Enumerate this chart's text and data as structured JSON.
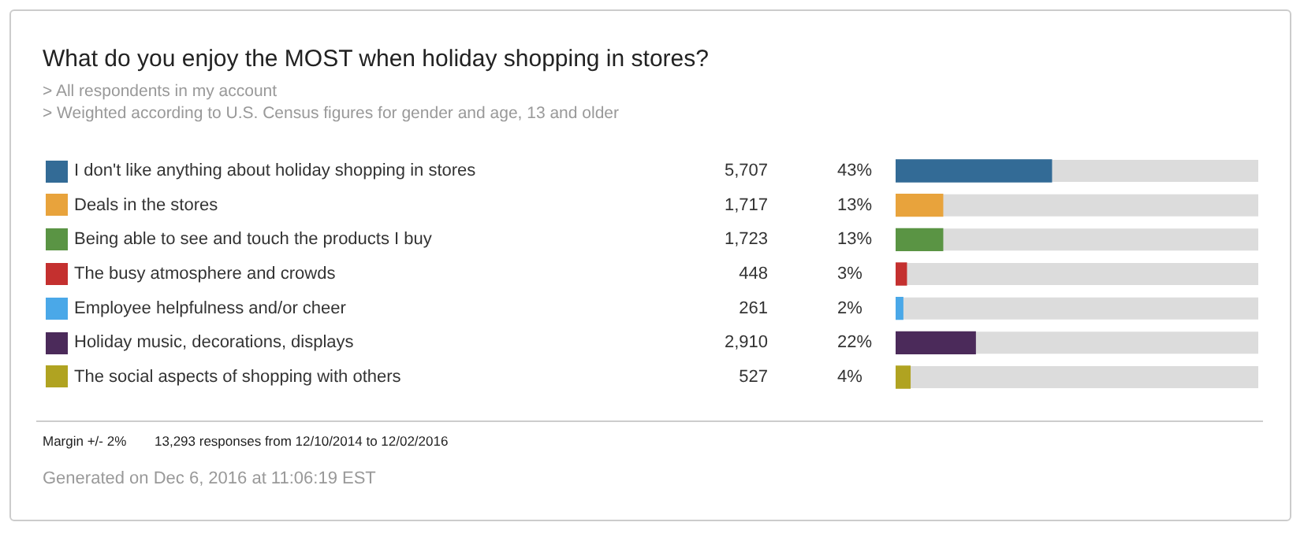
{
  "chart_data": {
    "type": "bar",
    "orientation": "horizontal",
    "title": "What do you enjoy the MOST when holiday shopping in stores?",
    "subtitle": "> All respondents in my account",
    "categories": [
      "I don't like anything about holiday shopping in stores",
      "Deals in the stores",
      "Being able to see and touch the products I buy",
      "The busy atmosphere and crowds",
      "Employee helpfulness and/or cheer",
      "Holiday music, decorations, displays",
      "The social aspects of shopping with others"
    ],
    "values": [
      43,
      13,
      13,
      3,
      2,
      22,
      4
    ],
    "value_labels": [
      "43%",
      "13%",
      "13%",
      "3%",
      "2%",
      "22%",
      "4%"
    ],
    "colors": [
      "#336b96",
      "#e8a33c",
      "#5a9444",
      "#c4302f",
      "#4aa8e8",
      "#4b2a5a",
      "#b0a321"
    ],
    "xlim": [
      0,
      100
    ],
    "tick_labels": "y",
    "legend": false,
    "annotations": [
      "> Weighted according to U.S. Census figures for gender and age, 13 and older",
      "Margin +/- 2%",
      "13,293 responses from 12/10/2014 to 12/02/2016",
      "Generated on Dec 6, 2016 at 11:06:19 EST",
      "5,707",
      "1,717",
      "1,723",
      "448",
      "261",
      "2,910",
      "527"
    ]
  }
}
